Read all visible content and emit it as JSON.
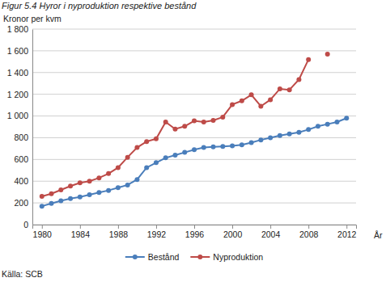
{
  "chart_data": {
    "type": "line",
    "title": "Figur 5.4 Hyror i nyproduktion respektive bestånd",
    "y_label": "Kronor per kvm",
    "x_label": "År",
    "source": "Källa: SCB",
    "x": [
      1980,
      1981,
      1982,
      1983,
      1984,
      1985,
      1986,
      1987,
      1988,
      1989,
      1990,
      1991,
      1992,
      1993,
      1994,
      1995,
      1996,
      1997,
      1998,
      1999,
      2000,
      2001,
      2002,
      2003,
      2004,
      2005,
      2006,
      2007,
      2008,
      2009,
      2010,
      2011,
      2012
    ],
    "series": [
      {
        "name": "Bestånd",
        "color": "#4a7ebb",
        "marker": "circle",
        "line_style": "solid",
        "values": [
          170,
          195,
          220,
          240,
          255,
          275,
          295,
          315,
          340,
          365,
          415,
          525,
          570,
          615,
          640,
          665,
          690,
          710,
          715,
          720,
          725,
          735,
          755,
          780,
          800,
          820,
          835,
          850,
          875,
          905,
          925,
          945,
          980
        ]
      },
      {
        "name": "Nyproduktion",
        "color": "#be4b48",
        "marker": "circle",
        "line_style": "solid",
        "values": [
          260,
          285,
          320,
          355,
          385,
          400,
          430,
          470,
          525,
          620,
          710,
          765,
          790,
          945,
          880,
          905,
          955,
          945,
          960,
          990,
          1105,
          1140,
          1195,
          1090,
          1150,
          1250,
          1240,
          1335,
          1520,
          null,
          1570,
          null,
          null
        ]
      }
    ],
    "xlim": [
      1979,
      2013
    ],
    "xticks": [
      1980,
      1984,
      1988,
      1992,
      1996,
      2000,
      2004,
      2008,
      2012
    ],
    "ylim": [
      0,
      1800
    ],
    "yticks": [
      0,
      200,
      400,
      600,
      800,
      {
        "value": 1000,
        "label": "1 000"
      },
      {
        "value": 1200,
        "label": "1 200"
      },
      {
        "value": 1400,
        "label": "1 400"
      },
      {
        "value": 1600,
        "label": "1 600"
      },
      {
        "value": 1800,
        "label": "1 800"
      }
    ],
    "grid": true,
    "legend": "bottom"
  }
}
